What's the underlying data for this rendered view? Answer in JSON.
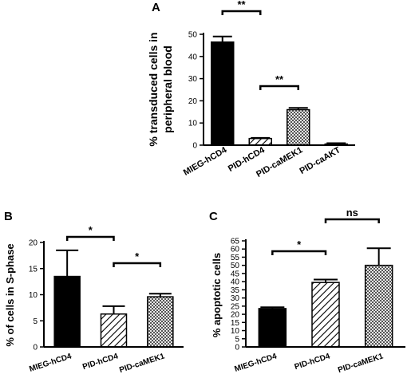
{
  "chart_data": [
    {
      "type": "bar",
      "panel": "A",
      "ylabel": "% transduced cells in peripheral blood",
      "ylabel_lines": [
        "% transduced cells in",
        "peripheral blood"
      ],
      "categories": [
        "MIEG-hCD4",
        "PID-hCD4",
        "PID-caMEK1",
        "PID-caAKT"
      ],
      "values": [
        46.5,
        3.0,
        16.0,
        0.5
      ],
      "errors": [
        2.5,
        0.3,
        0.8,
        0.4
      ],
      "patterns": [
        "solid",
        "hatch",
        "check",
        "solid"
      ],
      "ylim": [
        0,
        50
      ],
      "yticks": [
        0,
        10,
        20,
        30,
        40,
        50
      ],
      "significance": [
        {
          "from": 0,
          "to": 1,
          "label": "**"
        },
        {
          "from": 1,
          "to": 2,
          "label": "**"
        }
      ]
    },
    {
      "type": "bar",
      "panel": "B",
      "ylabel": "% of cells in S-phase",
      "categories": [
        "MIEG-hCD4",
        "PID-hCD4",
        "PID-caMEK1"
      ],
      "values": [
        13.5,
        6.3,
        9.6
      ],
      "errors": [
        5.0,
        1.5,
        0.6
      ],
      "patterns": [
        "solid",
        "hatch",
        "check"
      ],
      "ylim": [
        0,
        20
      ],
      "yticks": [
        0,
        5,
        10,
        15,
        20
      ],
      "significance": [
        {
          "from": 0,
          "to": 1,
          "label": "*"
        },
        {
          "from": 1,
          "to": 2,
          "label": "*"
        }
      ]
    },
    {
      "type": "bar",
      "panel": "C",
      "ylabel": "% apoptotic cells",
      "categories": [
        "MIEG-hCD4",
        "PID-hCD4",
        "PID-caMEK1"
      ],
      "values": [
        23.5,
        39.5,
        50.0
      ],
      "errors": [
        0.8,
        1.8,
        10.5
      ],
      "patterns": [
        "solid",
        "hatch",
        "check"
      ],
      "ylim": [
        0,
        65
      ],
      "yticks": [
        0,
        5,
        10,
        15,
        20,
        25,
        30,
        35,
        40,
        45,
        50,
        55,
        60,
        65
      ],
      "significance": [
        {
          "from": 0,
          "to": 1,
          "label": "*"
        },
        {
          "from": 1,
          "to": 2,
          "label": "ns"
        }
      ]
    }
  ]
}
